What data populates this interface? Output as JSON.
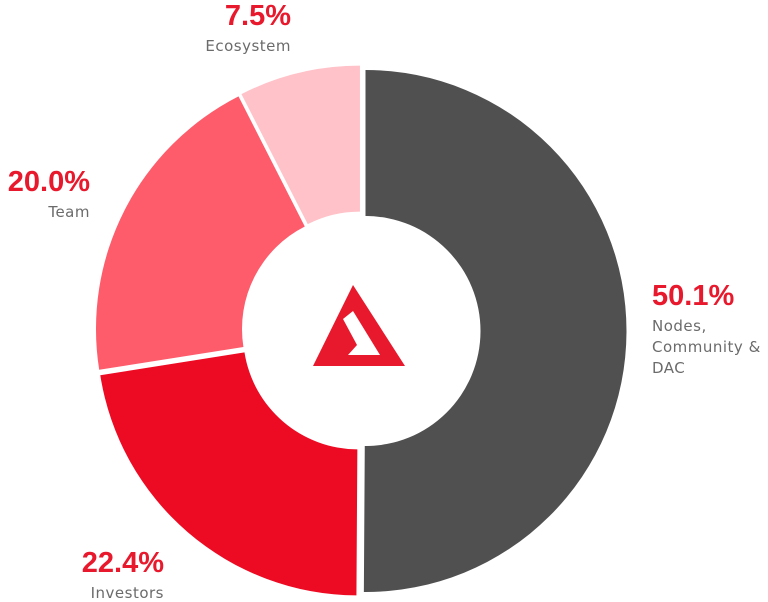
{
  "chart_data": {
    "type": "pie",
    "variant": "donut",
    "slices": [
      {
        "label": [
          "Nodes,",
          "Community &",
          "DAC"
        ],
        "value": 50.1,
        "value_label": "50.1%",
        "color": "#505050"
      },
      {
        "label": [
          "Investors"
        ],
        "value": 22.4,
        "value_label": "22.4%",
        "color": "#ed0a23"
      },
      {
        "label": [
          "Team"
        ],
        "value": 20.0,
        "value_label": "20.0%",
        "color": "#fe5b6b"
      },
      {
        "label": [
          "Ecosystem"
        ],
        "value": 7.5,
        "value_label": "7.5%",
        "color": "#ffc2c8"
      }
    ],
    "center_icon": "triangle-logo-icon",
    "label_color": "#e8192c"
  }
}
